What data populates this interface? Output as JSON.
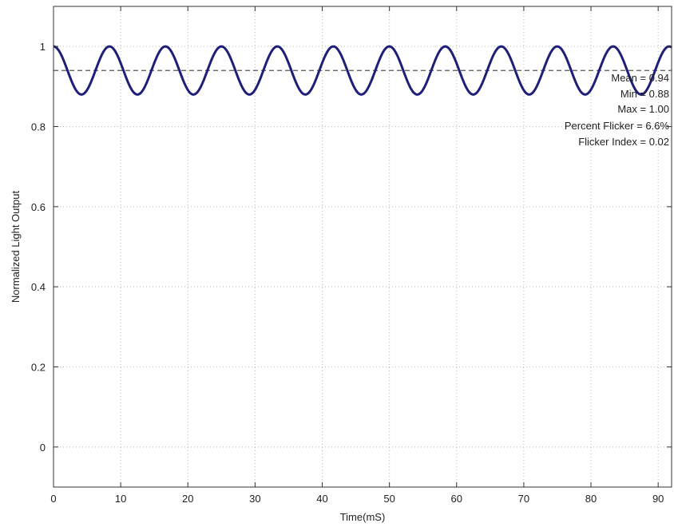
{
  "chart_data": {
    "type": "line",
    "title": "",
    "xlabel": "Time(mS)",
    "ylabel": "Normalized Light Output",
    "xlim": [
      0,
      92
    ],
    "ylim": [
      -0.1,
      1.1
    ],
    "x_ticks": [
      0,
      10,
      20,
      30,
      40,
      50,
      60,
      70,
      80,
      90
    ],
    "y_ticks": [
      0,
      0.2,
      0.4,
      0.6,
      0.8,
      1
    ],
    "x_tick_labels": [
      "0",
      "10",
      "20",
      "30",
      "40",
      "50",
      "60",
      "70",
      "80",
      "90"
    ],
    "y_tick_labels": [
      "0",
      "0.2",
      "0.4",
      "0.6",
      "0.8",
      "1"
    ],
    "grid": true,
    "series": [
      {
        "color": "#1f1f7a",
        "waveform": "sine",
        "mean": 0.94,
        "min": 0.88,
        "max": 1.0,
        "period_ms": 8.33,
        "peak_at_ms": 0
      },
      {
        "color": "#555555",
        "style": "dashed",
        "constant": 0.94
      }
    ],
    "annotations": [
      "Mean = 0.94",
      "Min = 0.88",
      "Max = 1.00",
      "Percent Flicker = 6.6%",
      "Flicker Index = 0.02"
    ]
  }
}
